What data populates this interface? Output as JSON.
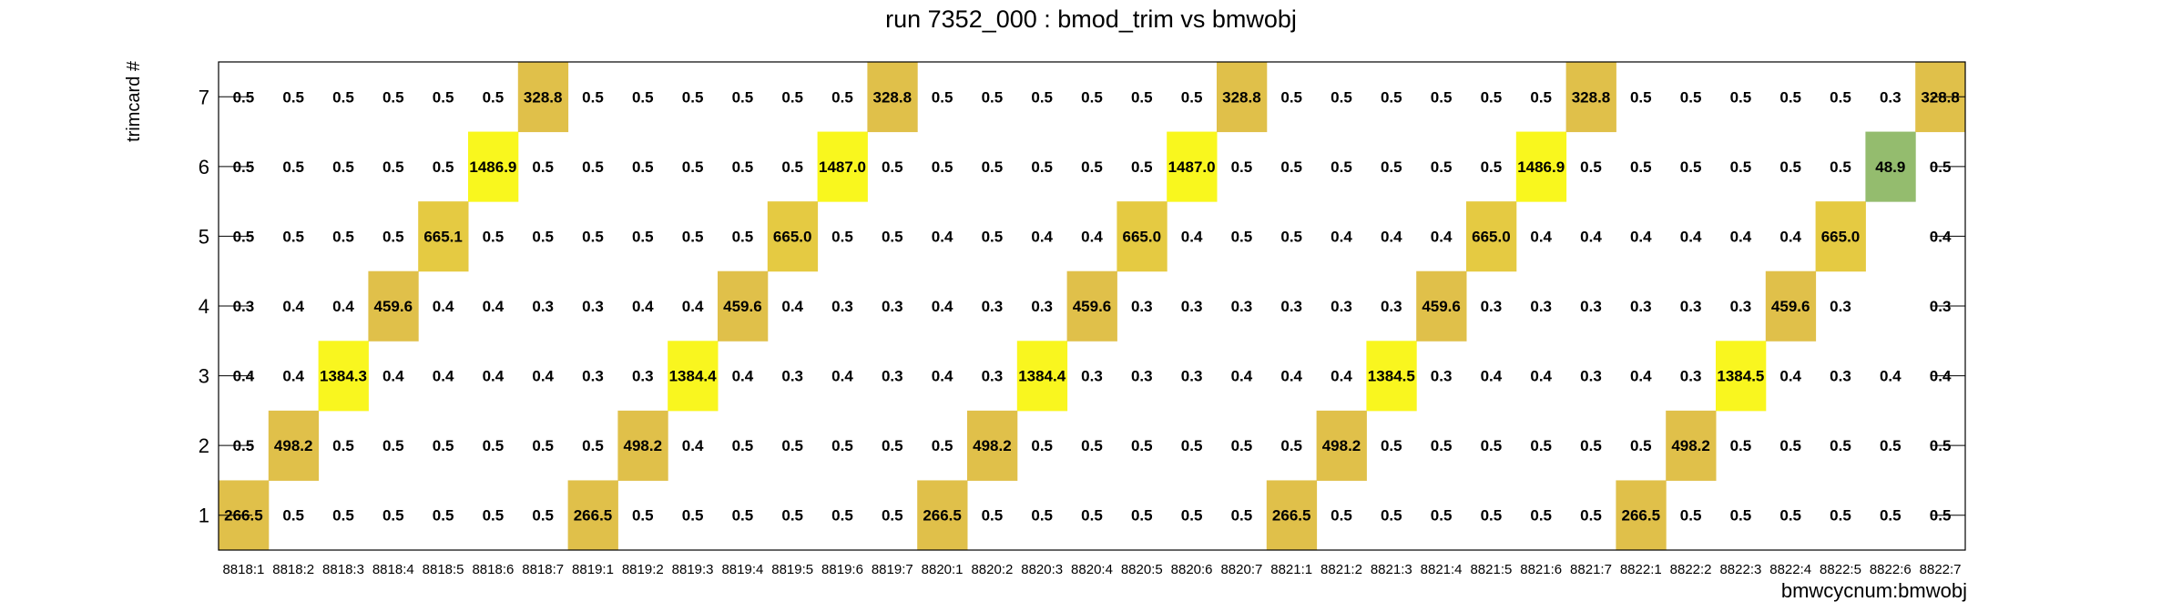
{
  "chart_data": {
    "type": "heatmap",
    "title": "run 7352_000 : bmod_trim vs bmwobj",
    "xlabel": "bmwcycnum:bmwobj",
    "ylabel": "trimcard #",
    "x_categories": [
      "8818:1",
      "8818:2",
      "8818:3",
      "8818:4",
      "8818:5",
      "8818:6",
      "8818:7",
      "8819:1",
      "8819:2",
      "8819:3",
      "8819:4",
      "8819:5",
      "8819:6",
      "8819:7",
      "8820:1",
      "8820:2",
      "8820:3",
      "8820:4",
      "8820:5",
      "8820:6",
      "8820:7",
      "8821:1",
      "8821:2",
      "8821:3",
      "8821:4",
      "8821:5",
      "8821:6",
      "8821:7",
      "8822:1",
      "8822:2",
      "8822:3",
      "8822:4",
      "8822:5",
      "8822:6",
      "8822:7"
    ],
    "y_categories": [
      "1",
      "2",
      "3",
      "4",
      "5",
      "6",
      "7"
    ],
    "rows": [
      [
        "266.5",
        "0.5",
        "0.5",
        "0.5",
        "0.5",
        "0.5",
        "0.5",
        "266.5",
        "0.5",
        "0.5",
        "0.5",
        "0.5",
        "0.5",
        "0.5",
        "266.5",
        "0.5",
        "0.5",
        "0.5",
        "0.5",
        "0.5",
        "0.5",
        "266.5",
        "0.5",
        "0.5",
        "0.5",
        "0.5",
        "0.5",
        "0.5",
        "266.5",
        "0.5",
        "0.5",
        "0.5",
        "0.5",
        "0.5",
        "0.5"
      ],
      [
        "0.5",
        "498.2",
        "0.5",
        "0.5",
        "0.5",
        "0.5",
        "0.5",
        "0.5",
        "498.2",
        "0.4",
        "0.5",
        "0.5",
        "0.5",
        "0.5",
        "0.5",
        "498.2",
        "0.5",
        "0.5",
        "0.5",
        "0.5",
        "0.5",
        "0.5",
        "498.2",
        "0.5",
        "0.5",
        "0.5",
        "0.5",
        "0.5",
        "0.5",
        "498.2",
        "0.5",
        "0.5",
        "0.5",
        "0.5",
        "0.5"
      ],
      [
        "0.4",
        "0.4",
        "1384.3",
        "0.4",
        "0.4",
        "0.4",
        "0.4",
        "0.3",
        "0.3",
        "1384.4",
        "0.4",
        "0.3",
        "0.4",
        "0.3",
        "0.4",
        "0.3",
        "1384.4",
        "0.3",
        "0.3",
        "0.3",
        "0.4",
        "0.4",
        "0.4",
        "1384.5",
        "0.3",
        "0.4",
        "0.4",
        "0.3",
        "0.4",
        "0.3",
        "1384.5",
        "0.4",
        "0.3",
        "0.4",
        "0.4"
      ],
      [
        "0.3",
        "0.4",
        "0.4",
        "459.6",
        "0.4",
        "0.4",
        "0.3",
        "0.3",
        "0.4",
        "0.4",
        "459.6",
        "0.4",
        "0.3",
        "0.3",
        "0.4",
        "0.3",
        "0.3",
        "459.6",
        "0.3",
        "0.3",
        "0.3",
        "0.3",
        "0.3",
        "0.3",
        "459.6",
        "0.3",
        "0.3",
        "0.3",
        "0.3",
        "0.3",
        "0.3",
        "459.6",
        "0.3",
        "",
        "0.3"
      ],
      [
        "0.5",
        "0.5",
        "0.5",
        "0.5",
        "665.1",
        "0.5",
        "0.5",
        "0.5",
        "0.5",
        "0.5",
        "0.5",
        "665.0",
        "0.5",
        "0.5",
        "0.4",
        "0.5",
        "0.4",
        "0.4",
        "665.0",
        "0.4",
        "0.5",
        "0.5",
        "0.4",
        "0.4",
        "0.4",
        "665.0",
        "0.4",
        "0.4",
        "0.4",
        "0.4",
        "0.4",
        "0.4",
        "665.0",
        "",
        "0.4"
      ],
      [
        "0.5",
        "0.5",
        "0.5",
        "0.5",
        "0.5",
        "1486.9",
        "0.5",
        "0.5",
        "0.5",
        "0.5",
        "0.5",
        "0.5",
        "1487.0",
        "0.5",
        "0.5",
        "0.5",
        "0.5",
        "0.5",
        "0.5",
        "1487.0",
        "0.5",
        "0.5",
        "0.5",
        "0.5",
        "0.5",
        "0.5",
        "1486.9",
        "0.5",
        "0.5",
        "0.5",
        "0.5",
        "0.5",
        "0.5",
        "48.9",
        "0.5"
      ],
      [
        "0.5",
        "0.5",
        "0.5",
        "0.5",
        "0.5",
        "0.5",
        "328.8",
        "0.5",
        "0.5",
        "0.5",
        "0.5",
        "0.5",
        "0.5",
        "328.8",
        "0.5",
        "0.5",
        "0.5",
        "0.5",
        "0.5",
        "0.5",
        "328.8",
        "0.5",
        "0.5",
        "0.5",
        "0.5",
        "0.5",
        "0.5",
        "328.8",
        "0.5",
        "0.5",
        "0.5",
        "0.5",
        "0.5",
        "0.3",
        "328.8"
      ]
    ],
    "color_scale": {
      "low": "#4cb991",
      "mid": "#e0c04a",
      "high": "#f9f71e",
      "min": 0,
      "max": 1500
    },
    "colored_threshold": 10,
    "grid": false,
    "legend": "none"
  }
}
